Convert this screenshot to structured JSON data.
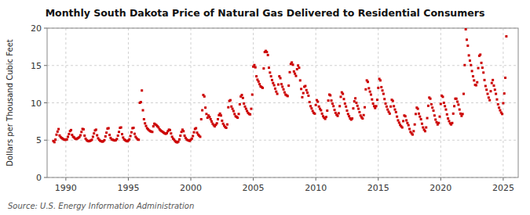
{
  "chart_data": {
    "type": "scatter",
    "title": "Monthly South Dakota Price of Natural Gas Delivered to Residential Consumers",
    "y_label": "Dollars per Thousand Cubic Feet",
    "annotations": [
      "Source: U.S. Energy Information Administration"
    ],
    "color": "#cc0000",
    "marker": "square",
    "grid": true,
    "xlim": [
      1988.5,
      2026.2
    ],
    "ylim": [
      0,
      20
    ],
    "xticks": [
      1990,
      1995,
      2000,
      2005,
      2010,
      2015,
      2020,
      2025
    ],
    "yticks": [
      0,
      5,
      10,
      15,
      20
    ],
    "x": [
      1989.0,
      1989.083,
      1989.167,
      1989.25,
      1989.333,
      1989.417,
      1989.5,
      1989.583,
      1989.667,
      1989.75,
      1989.833,
      1989.917,
      1990.0,
      1990.083,
      1990.167,
      1990.25,
      1990.333,
      1990.417,
      1990.5,
      1990.583,
      1990.667,
      1990.75,
      1990.833,
      1990.917,
      1991.0,
      1991.083,
      1991.167,
      1991.25,
      1991.333,
      1991.417,
      1991.5,
      1991.583,
      1991.667,
      1991.75,
      1991.833,
      1991.917,
      1992.0,
      1992.083,
      1992.167,
      1992.25,
      1992.333,
      1992.417,
      1992.5,
      1992.583,
      1992.667,
      1992.75,
      1992.833,
      1992.917,
      1993.0,
      1993.083,
      1993.167,
      1993.25,
      1993.333,
      1993.417,
      1993.5,
      1993.583,
      1993.667,
      1993.75,
      1993.833,
      1993.917,
      1994.0,
      1994.083,
      1994.167,
      1994.25,
      1994.333,
      1994.417,
      1994.5,
      1994.583,
      1994.667,
      1994.75,
      1994.833,
      1994.917,
      1995.0,
      1995.083,
      1995.167,
      1995.25,
      1995.333,
      1995.417,
      1995.5,
      1995.583,
      1995.667,
      1995.75,
      1995.833,
      1995.917,
      1996.0,
      1996.083,
      1996.167,
      1996.25,
      1996.333,
      1996.417,
      1996.5,
      1996.583,
      1996.667,
      1996.75,
      1996.833,
      1996.917,
      1997.0,
      1997.083,
      1997.167,
      1997.25,
      1997.333,
      1997.417,
      1997.5,
      1997.583,
      1997.667,
      1997.75,
      1997.833,
      1997.917,
      1998.0,
      1998.083,
      1998.167,
      1998.25,
      1998.333,
      1998.417,
      1998.5,
      1998.583,
      1998.667,
      1998.75,
      1998.833,
      1998.917,
      1999.0,
      1999.083,
      1999.167,
      1999.25,
      1999.333,
      1999.417,
      1999.5,
      1999.583,
      1999.667,
      1999.75,
      1999.833,
      1999.917,
      2000.0,
      2000.083,
      2000.167,
      2000.25,
      2000.333,
      2000.417,
      2000.5,
      2000.583,
      2000.667,
      2000.75,
      2000.833,
      2000.917,
      2001.0,
      2001.083,
      2001.167,
      2001.25,
      2001.333,
      2001.417,
      2001.5,
      2001.583,
      2001.667,
      2001.75,
      2001.833,
      2001.917,
      2002.0,
      2002.083,
      2002.167,
      2002.25,
      2002.333,
      2002.417,
      2002.5,
      2002.583,
      2002.667,
      2002.75,
      2002.833,
      2002.917,
      2003.0,
      2003.083,
      2003.167,
      2003.25,
      2003.333,
      2003.417,
      2003.5,
      2003.583,
      2003.667,
      2003.75,
      2003.833,
      2003.917,
      2004.0,
      2004.083,
      2004.167,
      2004.25,
      2004.333,
      2004.417,
      2004.5,
      2004.583,
      2004.667,
      2004.75,
      2004.833,
      2004.917,
      2005.0,
      2005.083,
      2005.167,
      2005.25,
      2005.333,
      2005.417,
      2005.5,
      2005.583,
      2005.667,
      2005.75,
      2005.833,
      2005.917,
      2006.0,
      2006.083,
      2006.167,
      2006.25,
      2006.333,
      2006.417,
      2006.5,
      2006.583,
      2006.667,
      2006.75,
      2006.833,
      2006.917,
      2007.0,
      2007.083,
      2007.167,
      2007.25,
      2007.333,
      2007.417,
      2007.5,
      2007.583,
      2007.667,
      2007.75,
      2007.833,
      2007.917,
      2008.0,
      2008.083,
      2008.167,
      2008.25,
      2008.333,
      2008.417,
      2008.5,
      2008.583,
      2008.667,
      2008.75,
      2008.833,
      2008.917,
      2009.0,
      2009.083,
      2009.167,
      2009.25,
      2009.333,
      2009.417,
      2009.5,
      2009.583,
      2009.667,
      2009.75,
      2009.833,
      2009.917,
      2010.0,
      2010.083,
      2010.167,
      2010.25,
      2010.333,
      2010.417,
      2010.5,
      2010.583,
      2010.667,
      2010.75,
      2010.833,
      2010.917,
      2011.0,
      2011.083,
      2011.167,
      2011.25,
      2011.333,
      2011.417,
      2011.5,
      2011.583,
      2011.667,
      2011.75,
      2011.833,
      2011.917,
      2012.0,
      2012.083,
      2012.167,
      2012.25,
      2012.333,
      2012.417,
      2012.5,
      2012.583,
      2012.667,
      2012.75,
      2012.833,
      2012.917,
      2013.0,
      2013.083,
      2013.167,
      2013.25,
      2013.333,
      2013.417,
      2013.5,
      2013.583,
      2013.667,
      2013.75,
      2013.833,
      2013.917,
      2014.0,
      2014.083,
      2014.167,
      2014.25,
      2014.333,
      2014.417,
      2014.5,
      2014.583,
      2014.667,
      2014.75,
      2014.833,
      2014.917,
      2015.0,
      2015.083,
      2015.167,
      2015.25,
      2015.333,
      2015.417,
      2015.5,
      2015.583,
      2015.667,
      2015.75,
      2015.833,
      2015.917,
      2016.0,
      2016.083,
      2016.167,
      2016.25,
      2016.333,
      2016.417,
      2016.5,
      2016.583,
      2016.667,
      2016.75,
      2016.833,
      2016.917,
      2017.0,
      2017.083,
      2017.167,
      2017.25,
      2017.333,
      2017.417,
      2017.5,
      2017.583,
      2017.667,
      2017.75,
      2017.833,
      2017.917,
      2018.0,
      2018.083,
      2018.167,
      2018.25,
      2018.333,
      2018.417,
      2018.5,
      2018.583,
      2018.667,
      2018.75,
      2018.833,
      2018.917,
      2019.0,
      2019.083,
      2019.167,
      2019.25,
      2019.333,
      2019.417,
      2019.5,
      2019.583,
      2019.667,
      2019.75,
      2019.833,
      2019.917,
      2020.0,
      2020.083,
      2020.167,
      2020.25,
      2020.333,
      2020.417,
      2020.5,
      2020.583,
      2020.667,
      2020.75,
      2020.833,
      2020.917,
      2021.0,
      2021.083,
      2021.167,
      2021.25,
      2021.333,
      2021.417,
      2021.5,
      2021.583,
      2021.667,
      2021.75,
      2021.833,
      2021.917,
      2022.0,
      2022.083,
      2022.167,
      2022.25,
      2022.333,
      2022.417,
      2022.5,
      2022.583,
      2022.667,
      2022.75,
      2022.833,
      2022.917,
      2023.0,
      2023.083,
      2023.167,
      2023.25,
      2023.333,
      2023.417,
      2023.5,
      2023.583,
      2023.667,
      2023.75,
      2023.833,
      2023.917,
      2024.0,
      2024.083,
      2024.167,
      2024.25,
      2024.333,
      2024.417,
      2024.5,
      2024.583,
      2024.667,
      2024.75,
      2024.833,
      2024.917,
      2025.0,
      2025.083,
      2025.167,
      2025.25
    ],
    "values": [
      4.88,
      4.73,
      5.07,
      5.73,
      6.14,
      6.48,
      5.62,
      5.41,
      5.28,
      5.2,
      5.1,
      5.05,
      5.05,
      5.1,
      5.45,
      5.82,
      6.21,
      6.35,
      5.7,
      5.45,
      5.35,
      5.2,
      5.15,
      5.22,
      5.3,
      5.42,
      5.65,
      6.1,
      6.5,
      6.45,
      5.6,
      5.2,
      5.0,
      4.9,
      4.85,
      4.9,
      4.95,
      5.05,
      5.45,
      5.9,
      6.3,
      6.4,
      5.65,
      5.25,
      5.05,
      4.92,
      4.85,
      4.8,
      4.85,
      5.0,
      5.5,
      6.0,
      6.55,
      6.6,
      5.7,
      5.3,
      5.1,
      5.05,
      5.0,
      4.95,
      5.0,
      5.15,
      5.6,
      6.1,
      6.65,
      6.7,
      5.8,
      5.35,
      5.1,
      5.0,
      4.9,
      4.85,
      4.95,
      5.1,
      5.55,
      6.05,
      6.6,
      6.65,
      5.85,
      5.45,
      5.25,
      5.1,
      5.05,
      10.0,
      10.1,
      11.65,
      9.0,
      7.8,
      7.25,
      6.9,
      6.6,
      6.45,
      6.3,
      6.2,
      6.15,
      6.1,
      6.85,
      7.2,
      7.1,
      7.0,
      6.85,
      6.7,
      6.45,
      6.3,
      6.2,
      6.1,
      6.0,
      5.9,
      5.85,
      5.95,
      6.2,
      6.4,
      6.35,
      5.9,
      5.45,
      5.2,
      5.05,
      4.85,
      4.75,
      4.7,
      4.8,
      5.1,
      5.6,
      6.1,
      6.4,
      6.2,
      5.6,
      5.3,
      5.1,
      5.0,
      4.95,
      4.9,
      5.05,
      5.2,
      5.55,
      6.05,
      6.5,
      6.6,
      6.0,
      5.75,
      5.6,
      5.45,
      7.8,
      9.0,
      11.05,
      10.85,
      9.35,
      8.5,
      8.0,
      8.3,
      8.1,
      7.8,
      7.5,
      7.2,
      7.0,
      6.85,
      7.05,
      7.25,
      7.8,
      8.35,
      8.55,
      8.3,
      7.6,
      7.2,
      6.95,
      6.75,
      6.65,
      7.1,
      9.4,
      10.25,
      10.35,
      9.5,
      9.2,
      8.9,
      8.5,
      8.2,
      8.1,
      8.0,
      8.5,
      9.8,
      10.85,
      11.05,
      10.65,
      9.9,
      9.5,
      9.2,
      8.9,
      8.65,
      8.5,
      8.45,
      9.2,
      11.1,
      14.85,
      15.05,
      14.75,
      13.55,
      13.1,
      12.85,
      12.5,
      12.2,
      12.1,
      12.0,
      14.6,
      16.8,
      16.95,
      16.8,
      16.4,
      14.7,
      14.05,
      13.55,
      13.05,
      12.65,
      12.35,
      11.9,
      11.5,
      11.2,
      12.45,
      13.55,
      13.3,
      12.5,
      12.15,
      11.8,
      11.4,
      11.1,
      11.0,
      10.9,
      12.3,
      14.1,
      15.2,
      15.4,
      15.1,
      14.2,
      13.9,
      13.6,
      14.5,
      15.0,
      14.7,
      13.0,
      11.85,
      10.75,
      11.3,
      12.15,
      12.25,
      11.7,
      11.35,
      10.95,
      10.1,
      9.55,
      9.25,
      8.9,
      8.65,
      8.55,
      9.7,
      10.35,
      10.15,
      9.5,
      9.2,
      9.0,
      8.55,
      8.2,
      8.0,
      7.85,
      8.1,
      8.95,
      10.3,
      11.1,
      11.0,
      10.3,
      9.9,
      9.55,
      9.05,
      8.65,
      8.4,
      8.25,
      8.6,
      9.55,
      10.8,
      11.4,
      11.2,
      10.5,
      9.9,
      9.5,
      8.95,
      8.5,
      8.2,
      7.9,
      7.75,
      7.9,
      9.25,
      10.2,
      10.6,
      10.0,
      9.6,
      9.2,
      8.75,
      8.3,
      8.05,
      7.9,
      8.35,
      9.4,
      11.8,
      13.0,
      12.8,
      11.95,
      11.5,
      11.1,
      10.45,
      9.9,
      9.55,
      9.3,
      9.55,
      10.4,
      12.0,
      13.2,
      13.0,
      12.1,
      11.65,
      11.2,
      10.5,
      9.9,
      9.5,
      9.1,
      8.8,
      8.55,
      9.5,
      10.4,
      10.25,
      9.55,
      9.1,
      8.75,
      8.15,
      7.65,
      7.35,
      7.05,
      6.85,
      6.7,
      7.55,
      8.3,
      8.2,
      7.65,
      7.3,
      7.0,
      6.5,
      6.1,
      5.9,
      5.75,
      6.2,
      7.1,
      8.5,
      9.35,
      9.2,
      8.55,
      8.15,
      7.8,
      7.2,
      6.7,
      6.4,
      6.2,
      6.7,
      7.95,
      9.6,
      10.7,
      10.55,
      9.8,
      9.35,
      8.95,
      8.3,
      7.75,
      7.4,
      7.1,
      7.3,
      8.15,
      9.85,
      10.95,
      10.8,
      10.0,
      9.55,
      9.1,
      8.45,
      7.9,
      7.55,
      7.25,
      7.1,
      7.3,
      8.55,
      9.55,
      10.55,
      10.55,
      10.15,
      9.75,
      9.1,
      8.55,
      8.25,
      8.5,
      11.2,
      15.05,
      19.85,
      18.45,
      17.65,
      16.35,
      15.65,
      15.05,
      14.25,
      13.55,
      13.0,
      12.4,
      12.35,
      12.75,
      14.65,
      16.3,
      16.45,
      15.35,
      14.7,
      14.05,
      13.05,
      12.25,
      11.75,
      11.2,
      10.7,
      10.35,
      11.55,
      12.65,
      13.05,
      12.3,
      11.75,
      11.2,
      10.45,
      9.8,
      9.35,
      9.0,
      8.7,
      8.5,
      9.95,
      11.25,
      13.35,
      18.9
    ]
  }
}
